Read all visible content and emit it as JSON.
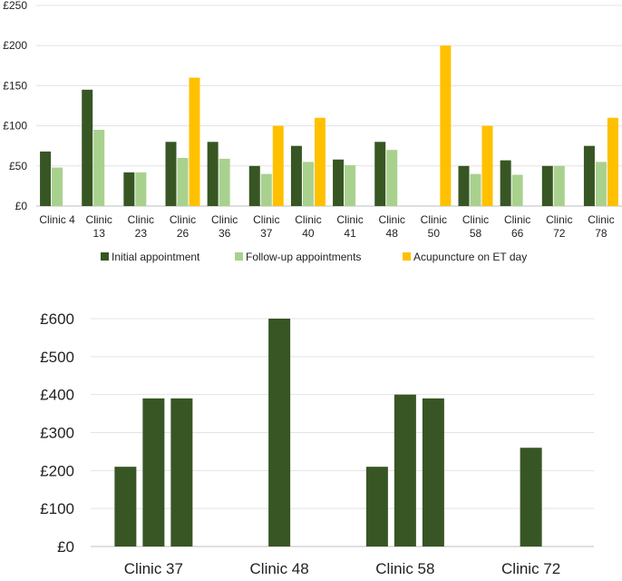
{
  "chart_data": [
    {
      "type": "bar",
      "categories": [
        [
          "Clinic 4"
        ],
        [
          "Clinic",
          "13"
        ],
        [
          "Clinic",
          "23"
        ],
        [
          "Clinic",
          "26"
        ],
        [
          "Clinic",
          "36"
        ],
        [
          "Clinic",
          "37"
        ],
        [
          "Clinic",
          "40"
        ],
        [
          "Clinic",
          "41"
        ],
        [
          "Clinic",
          "48"
        ],
        [
          "Clinic",
          "50"
        ],
        [
          "Clinic",
          "58"
        ],
        [
          "Clinic",
          "66"
        ],
        [
          "Clinic",
          "72"
        ],
        [
          "Clinic",
          "78"
        ]
      ],
      "series": [
        {
          "name": "Initial appointment",
          "color": "#375623",
          "values": [
            68,
            145,
            42,
            80,
            80,
            50,
            75,
            58,
            80,
            null,
            50,
            57,
            50,
            75
          ]
        },
        {
          "name": "Follow-up appointments",
          "color": "#a9d18e",
          "values": [
            48,
            95,
            42,
            60,
            59,
            40,
            55,
            51,
            70,
            null,
            40,
            39,
            50,
            55
          ]
        },
        {
          "name": "Acupuncture on ET day",
          "color": "#ffc000",
          "values": [
            null,
            null,
            null,
            160,
            null,
            100,
            110,
            null,
            null,
            200,
            100,
            null,
            null,
            110
          ]
        }
      ],
      "ylim": [
        0,
        250
      ],
      "yticks": [
        "£0",
        "£50",
        "£100",
        "£150",
        "£200",
        "£250"
      ],
      "title": "",
      "xlabel": "",
      "ylabel": "",
      "legend": "bottom"
    },
    {
      "type": "bar",
      "categories": [
        "Clinic 37",
        "Clinic 48",
        "Clinic 58",
        "Clinic 72"
      ],
      "series": [
        {
          "name": "",
          "color": "#375623",
          "values": [
            210,
            null,
            210,
            null
          ]
        },
        {
          "name": "",
          "color": "#375623",
          "values": [
            390,
            600,
            400,
            260
          ]
        },
        {
          "name": "",
          "color": "#375623",
          "values": [
            390,
            null,
            390,
            null
          ]
        }
      ],
      "ylim": [
        0,
        600
      ],
      "yticks": [
        "£0",
        "£100",
        "£200",
        "£300",
        "£400",
        "£500",
        "£600"
      ],
      "title": "",
      "xlabel": "",
      "ylabel": "",
      "legend": "none"
    }
  ]
}
